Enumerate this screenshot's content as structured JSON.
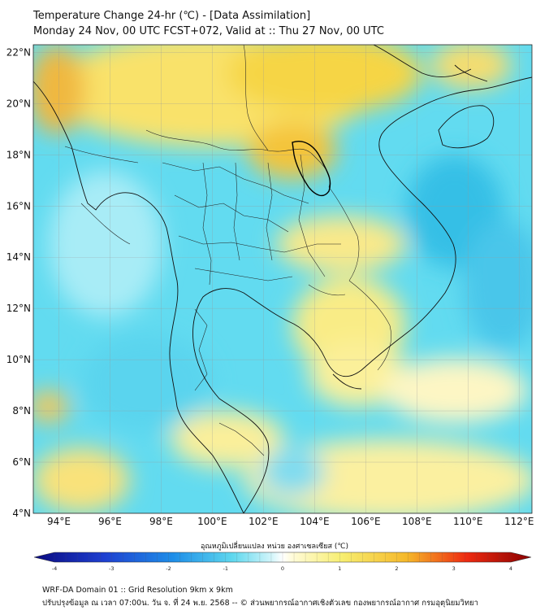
{
  "header": {
    "title_line1": "Temperature Change 24-hr (℃) - [Data Assimilation]",
    "title_line2": "Monday 24 Nov, 00 UTC FCST+072, Valid at :: Thu 27 Nov, 00 UTC"
  },
  "map": {
    "lat_labels": [
      "22°N",
      "20°N",
      "18°N",
      "16°N",
      "14°N",
      "12°N",
      "10°N",
      "8°N",
      "6°N",
      "4°N"
    ],
    "lon_labels": [
      "94°E",
      "96°E",
      "98°E",
      "100°E",
      "102°E",
      "104°E",
      "106°E",
      "108°E",
      "110°E",
      "112°E"
    ],
    "lat_range": [
      4,
      22.3
    ],
    "lon_range": [
      93,
      112.5
    ]
  },
  "colorbar": {
    "label": "อุณหภูมิเปลี่ยนแปลง หน่วย องศาเซลเซียส (℃)",
    "ticks": [
      "-4",
      "-3",
      "-2",
      "-1",
      "0",
      "1",
      "2",
      "3",
      "4"
    ],
    "range": [
      -4,
      4
    ],
    "colors": {
      "cold_dark": "#0a0a80",
      "cold": "#1e6ee8",
      "cool": "#3ecde8",
      "neutral": "#ffffff",
      "warm": "#f5e84a",
      "hot": "#f0a020",
      "hot_dark": "#a80000"
    }
  },
  "footer": {
    "line1": "WRF-DA Domain 01 :: Grid Resolution 9km x 9km",
    "line2": "ปรับปรุงข้อมูล ณ เวลา 07:00น. วัน จ. ที่ 24 พ.ย. 2568 -- © ส่วนพยากรณ์อากาศเชิงตัวเลข กองพยากรณ์อากาศ กรมอุตุนิยมวิทยา"
  }
}
